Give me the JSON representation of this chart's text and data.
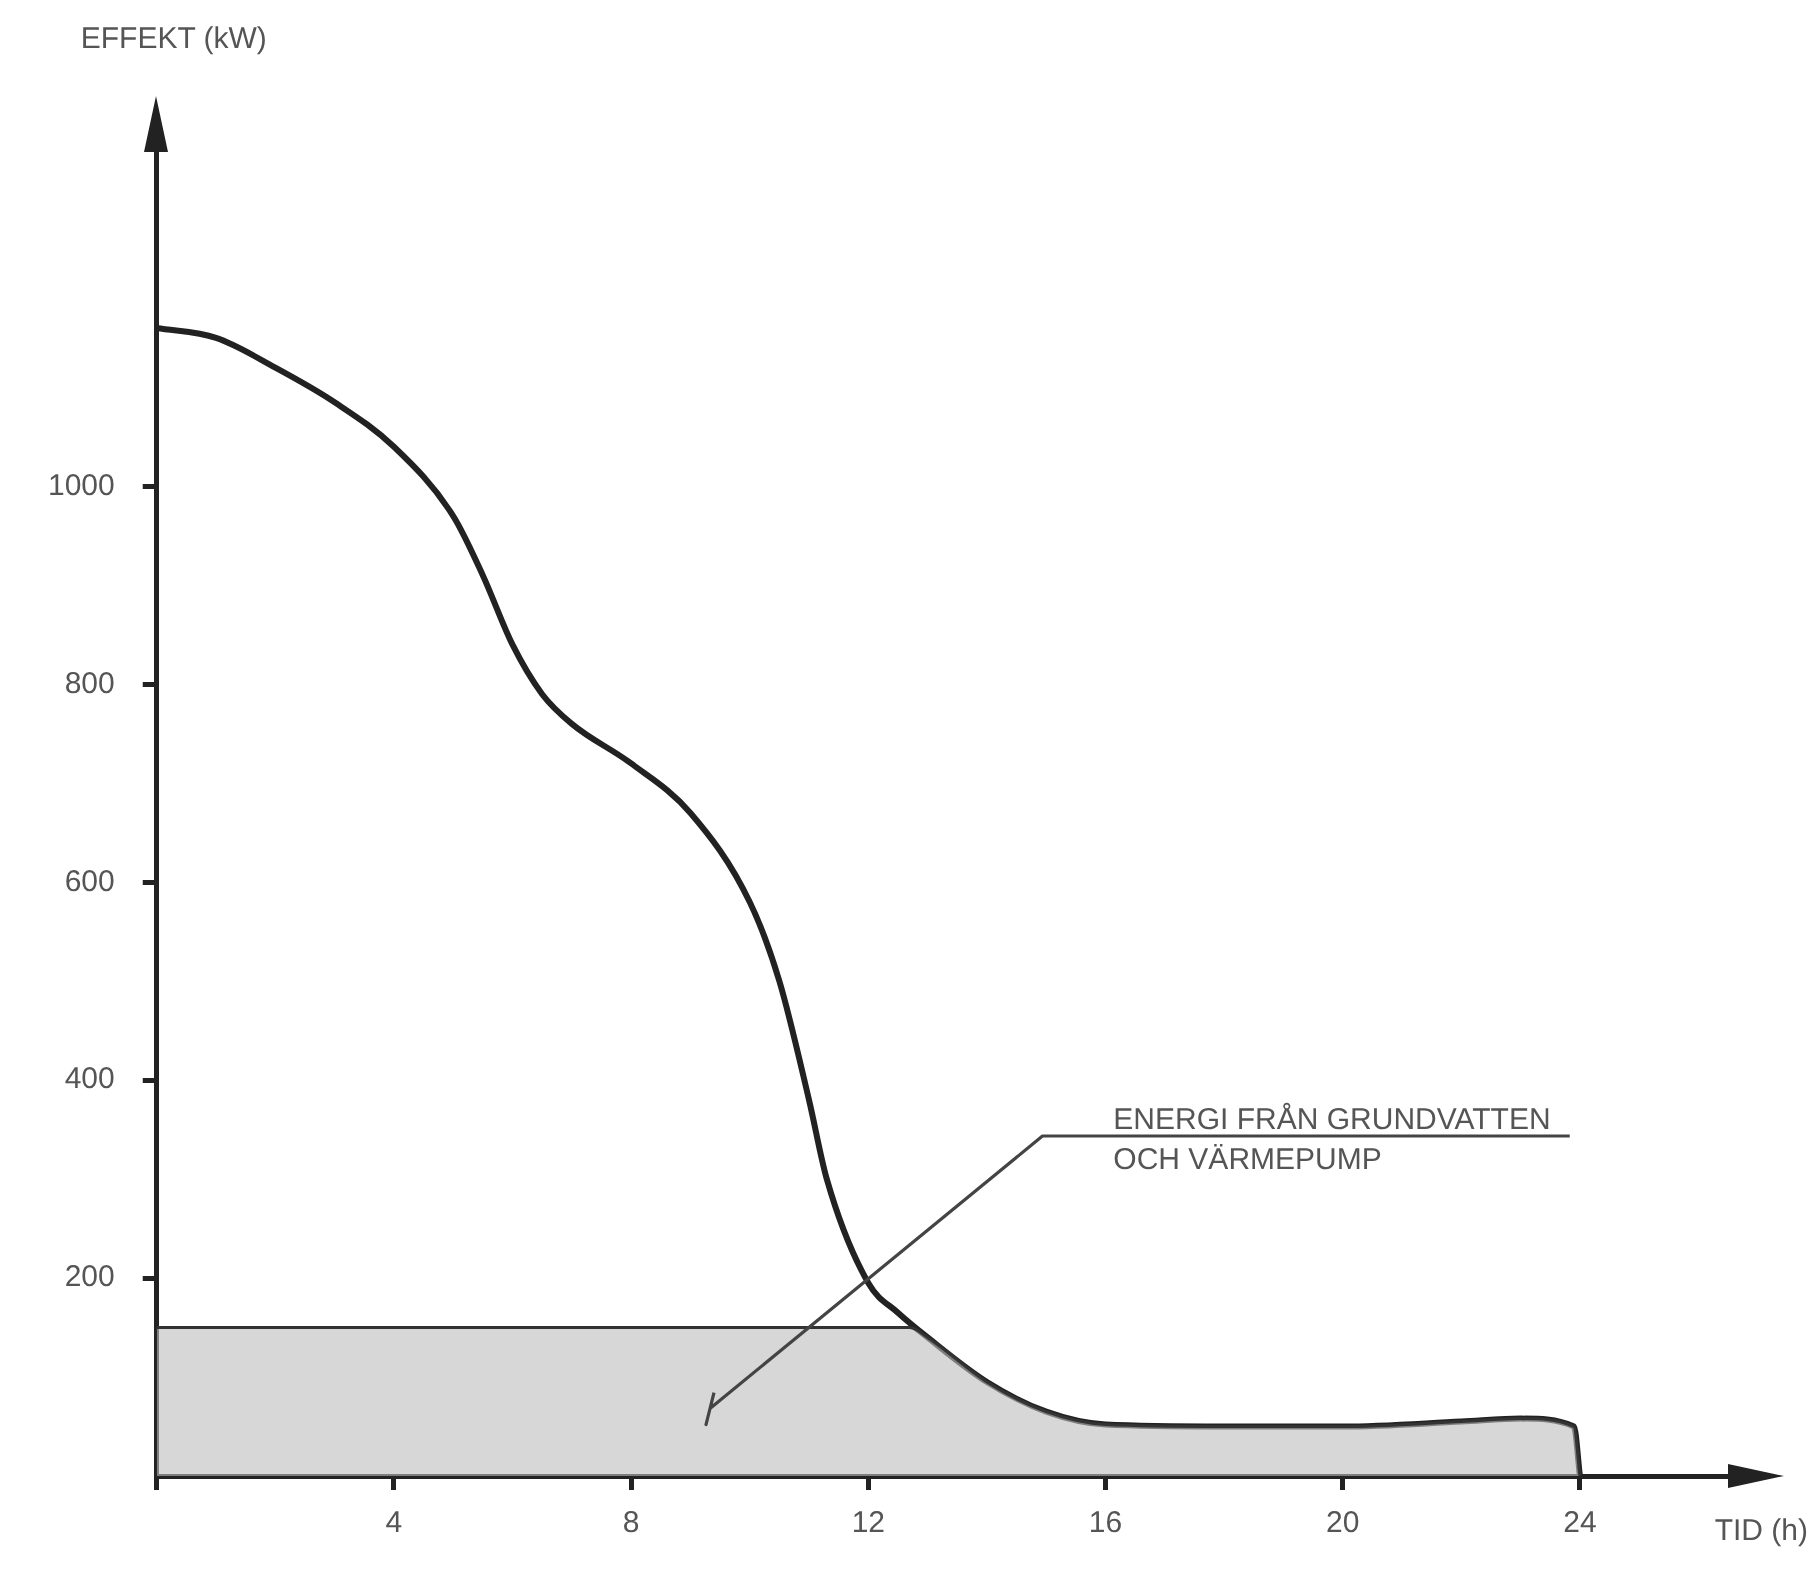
{
  "chart_data": {
    "type": "line",
    "xlabel": "TID (h)",
    "ylabel": "EFFEKT (kW)",
    "xlim": [
      0,
      26.7
    ],
    "ylim": [
      0,
      1350
    ],
    "xticks": [
      {
        "value": 0,
        "label": null
      },
      4,
      8,
      12,
      16,
      20,
      24
    ],
    "yticks": [
      200,
      400,
      600,
      800,
      1000
    ],
    "grid": false,
    "legend": false,
    "marker": "none",
    "line_style": "solid",
    "series": [
      {
        "type": "area",
        "color": "#bdbdbd",
        "x": [
          0,
          12.7,
          13,
          14,
          15,
          16,
          18,
          20,
          22,
          23,
          23.9,
          24
        ],
        "values": [
          150,
          150,
          140,
          95,
          65,
          52,
          50,
          50,
          55,
          58,
          50,
          0
        ]
      },
      {
        "type": "line",
        "color": "#222222",
        "x": [
          0,
          1,
          2,
          3,
          4,
          5,
          5.5,
          6,
          6.5,
          7,
          8,
          9,
          10,
          10.5,
          11,
          11.3,
          12,
          12.5,
          13,
          14,
          15,
          16,
          18,
          20,
          22,
          23,
          23.9,
          24
        ],
        "values": [
          1160,
          1150,
          1120,
          1085,
          1040,
          970,
          910,
          840,
          790,
          760,
          720,
          670,
          580,
          500,
          380,
          300,
          195,
          165,
          140,
          95,
          65,
          52,
          50,
          50,
          55,
          58,
          50,
          0
        ]
      }
    ],
    "annotations": [
      "ENERGI FRÅN GRUNDVATTEN\nOCH VÄRMEPUMP"
    ]
  }
}
